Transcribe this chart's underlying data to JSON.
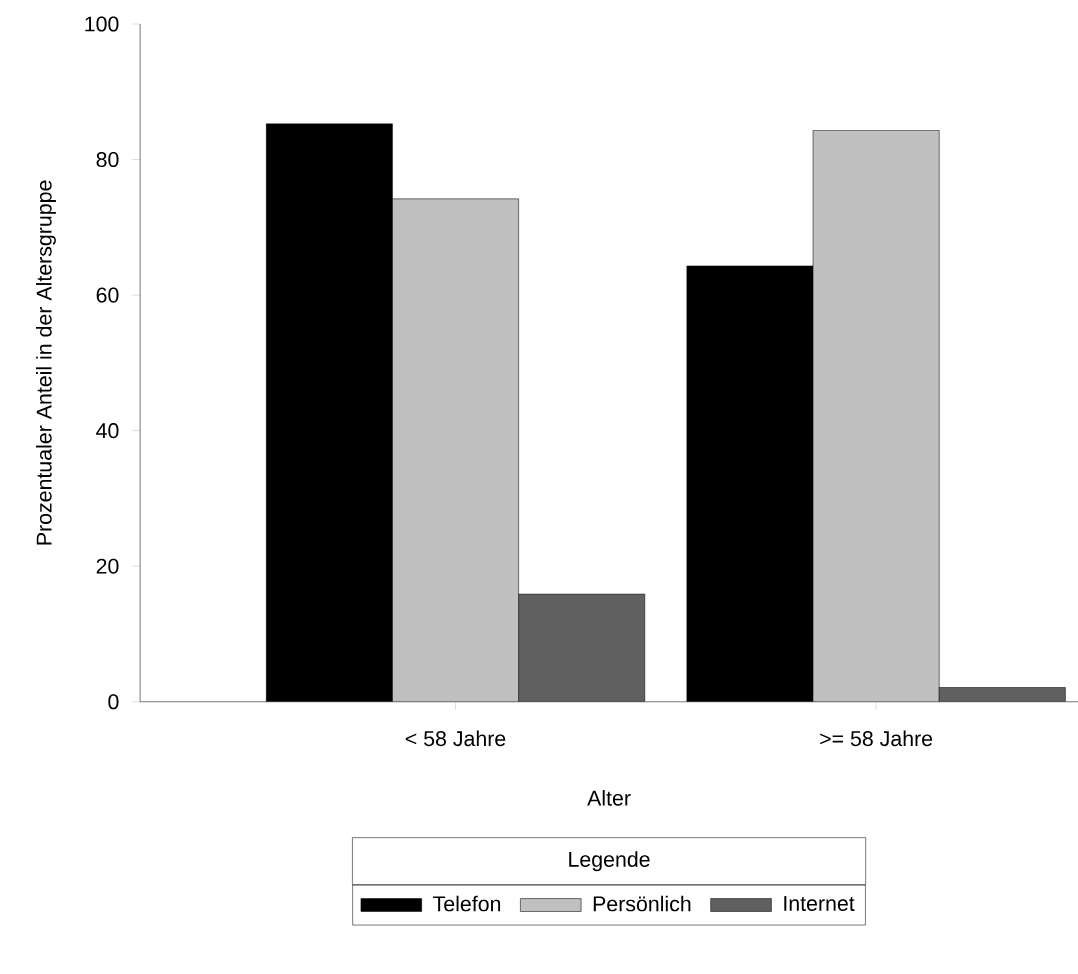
{
  "chart_data": {
    "type": "bar",
    "xlabel": "Alter",
    "ylabel": "Prozentualer Anteil in der Altersgruppe",
    "categories": [
      "< 58 Jahre",
      ">= 58 Jahre"
    ],
    "series": [
      {
        "name": "Telefon",
        "color": "#000000",
        "values": [
          85.3,
          64.3
        ]
      },
      {
        "name": "Persönlich",
        "color": "#c0c0c0",
        "values": [
          74.2,
          84.3
        ]
      },
      {
        "name": "Internet",
        "color": "#606060",
        "values": [
          15.9,
          2.1
        ]
      }
    ],
    "ylim": [
      0,
      100
    ],
    "yticks": [
      0,
      20,
      40,
      60,
      80,
      100
    ],
    "legend": "bottom",
    "legend_title": "Legende"
  }
}
